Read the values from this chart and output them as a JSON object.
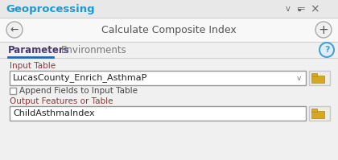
{
  "bg_color": "#ebebeb",
  "panel_bg": "#f0f0f0",
  "title_bar_bg": "#e8e8e8",
  "title_bar_text": "Geoprocessing",
  "title_bar_color": "#1a9ad7",
  "icon_color": "#666666",
  "tool_area_bg": "#f8f8f8",
  "tool_title": "Calculate Composite Index",
  "tool_title_color": "#555555",
  "tab_area_bg": "#f0f0f0",
  "tab_active": "Parameters",
  "tab_active_color": "#4a3a70",
  "tab_inactive": "Environments",
  "tab_inactive_color": "#777777",
  "tab_underline_color": "#2266bb",
  "help_circle_color": "#4a9fd4",
  "help_bg": "#ddeeff",
  "content_bg": "#f0f0f0",
  "label1": "Input Table",
  "label1_color": "#8b3a3a",
  "input1_text": "LucasCounty_Enrich_AsthmaP",
  "input1_bg": "#ffffff",
  "input1_border": "#999999",
  "dropdown_color": "#666666",
  "checkbox_text": "Append Fields to Input Table",
  "checkbox_color": "#444444",
  "label2": "Output Features or Table",
  "label2_color": "#8b3a3a",
  "input2_text": "ChildAsthmaIndex",
  "input2_bg": "#ffffff",
  "input2_border": "#999999",
  "folder_bg": "#e8e0d0",
  "folder_body": "#d4a820",
  "folder_tab": "#d4a820",
  "folder_border": "#b08a10",
  "folder_button_bg": "#f0ece4",
  "border_color": "#c8c8c8",
  "separator_color": "#d0d0d0"
}
